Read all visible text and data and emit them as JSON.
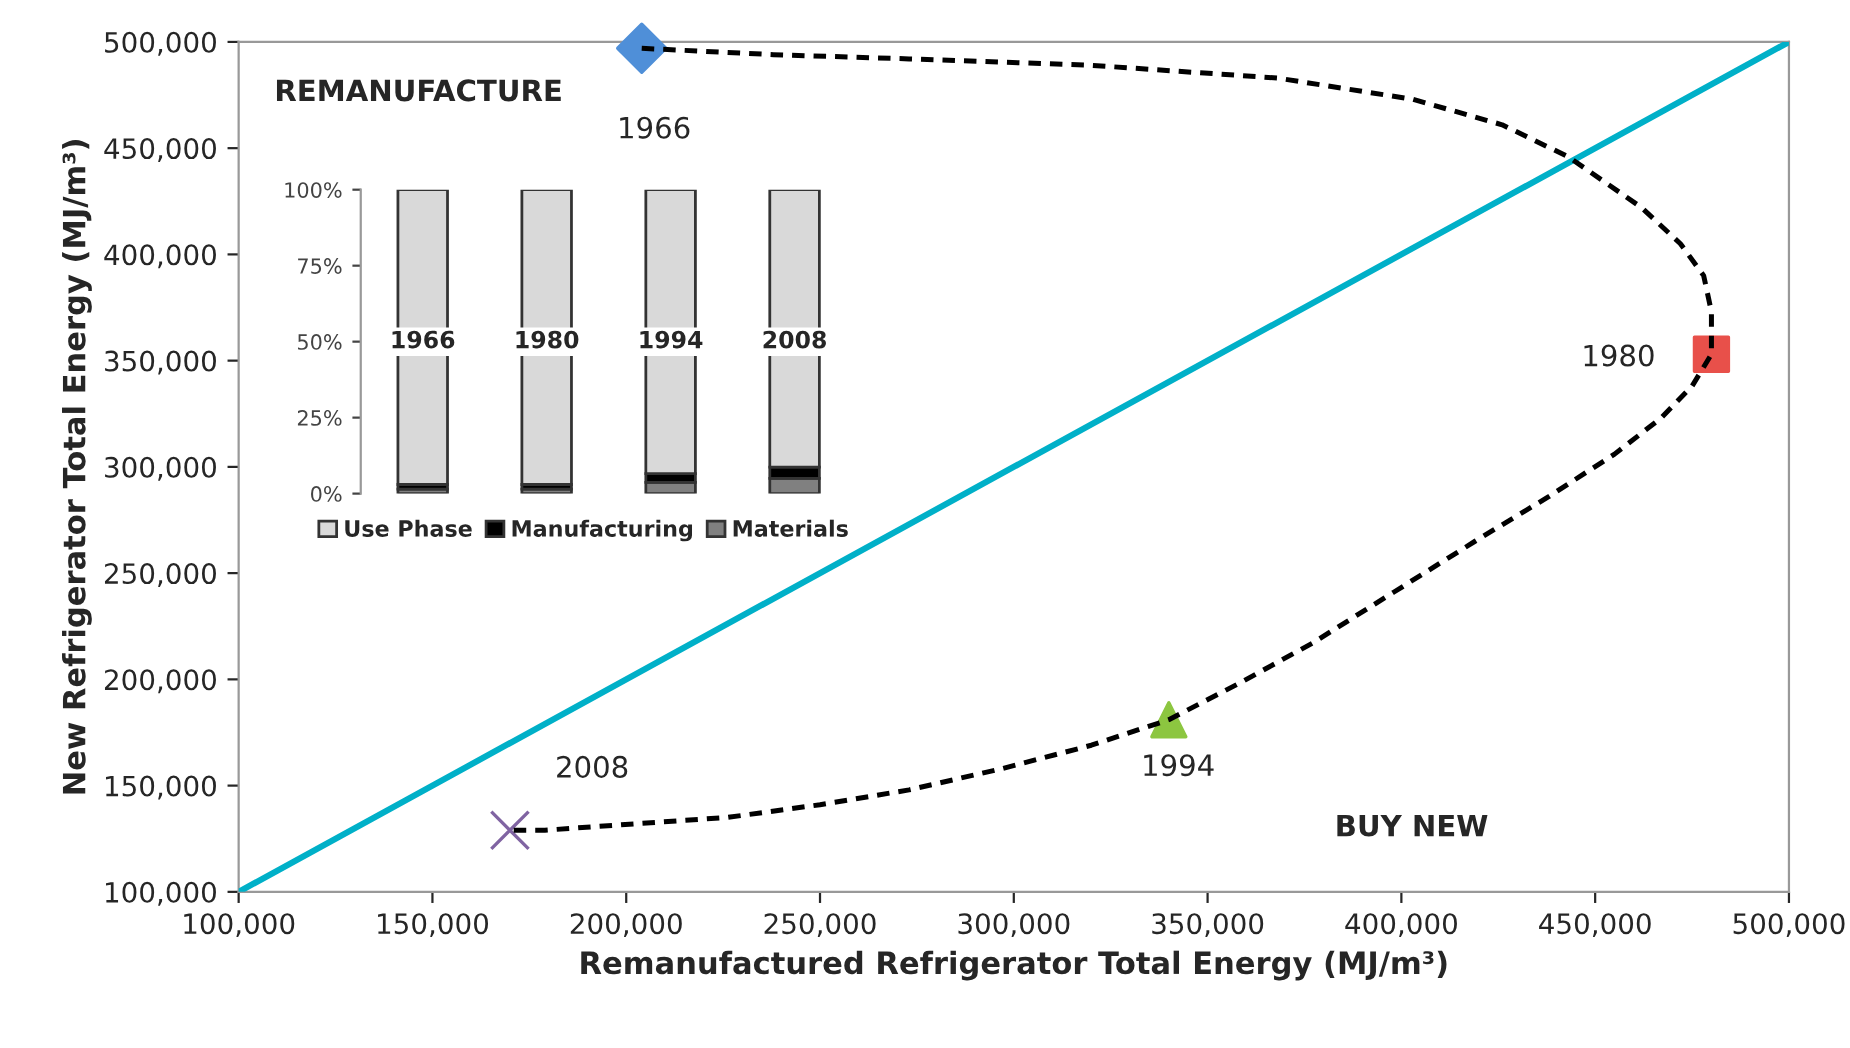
{
  "chart_data": [
    {
      "type": "scatter",
      "xlabel": "Remanufactured Refrigerator Total Energy (MJ/m³)",
      "ylabel": "New Refrigerator Total Energy (MJ/m³)",
      "xlim": [
        100000,
        500000
      ],
      "ylim": [
        100000,
        500000
      ],
      "xticks": [
        {
          "value": 100000,
          "label": "100,000"
        },
        {
          "value": 150000,
          "label": "150,000"
        },
        {
          "value": 200000,
          "label": "200,000"
        },
        {
          "value": 250000,
          "label": "250,000"
        },
        {
          "value": 300000,
          "label": "300,000"
        },
        {
          "value": 350000,
          "label": "350,000"
        },
        {
          "value": 400000,
          "label": "400,000"
        },
        {
          "value": 450000,
          "label": "450,000"
        },
        {
          "value": 500000,
          "label": "500,000"
        }
      ],
      "yticks": [
        {
          "value": 100000,
          "label": "100,000"
        },
        {
          "value": 150000,
          "label": "150,000"
        },
        {
          "value": 200000,
          "label": "200,000"
        },
        {
          "value": 250000,
          "label": "250,000"
        },
        {
          "value": 300000,
          "label": "300,000"
        },
        {
          "value": 350000,
          "label": "350,000"
        },
        {
          "value": 400000,
          "label": "400,000"
        },
        {
          "value": 450000,
          "label": "450,000"
        },
        {
          "value": 500000,
          "label": "500,000"
        }
      ],
      "grid": false,
      "series": [
        {
          "type": "line",
          "color": "#00b0c8",
          "line_style": "solid",
          "marker": "none",
          "x": [
            100000,
            500000
          ],
          "values": [
            100000,
            500000
          ]
        },
        {
          "type": "line",
          "color": "#000000",
          "line_style": "dashed",
          "marker": "none",
          "x": [
            204000,
            238000,
            273000,
            320000,
            368000,
            403000,
            426000,
            443000,
            462000,
            472000,
            478000,
            480000,
            480000,
            475000,
            467000,
            455000,
            438000,
            419000,
            398000,
            377000,
            358000,
            340000,
            320000,
            297000,
            273000,
            250000,
            226000,
            202000,
            179000,
            170000
          ],
          "values": [
            497000,
            494000,
            492000,
            489000,
            483000,
            473000,
            461000,
            446000,
            422000,
            405000,
            390000,
            373000,
            353000,
            338000,
            323000,
            306000,
            286000,
            265000,
            241000,
            217000,
            198000,
            181000,
            169000,
            158000,
            148000,
            141000,
            135000,
            132000,
            129000,
            129000
          ]
        },
        {
          "type": "scatter",
          "color": "#4f8fd8",
          "marker": "diamond",
          "x": [
            204000
          ],
          "values": [
            497000
          ]
        },
        {
          "type": "scatter",
          "color": "#e8504a",
          "marker": "square",
          "x": [
            480000
          ],
          "values": [
            353000
          ]
        },
        {
          "type": "scatter",
          "color": "#8cc640",
          "marker": "triangle",
          "x": [
            340000
          ],
          "values": [
            181000
          ]
        },
        {
          "type": "scatter",
          "color": "#8064a2",
          "marker": "cross",
          "x": [
            170000
          ],
          "values": [
            129000
          ]
        }
      ],
      "annotations": [
        "1966",
        "1980",
        "1994",
        "2008",
        "REMANUFACTURE",
        "BUY NEW"
      ]
    },
    {
      "type": "bar",
      "stacked": true,
      "categories": [
        "1966",
        "1980",
        "1994",
        "2008"
      ],
      "ylim": [
        0,
        100
      ],
      "yticks": [
        {
          "value": 0,
          "label": "0%"
        },
        {
          "value": 25,
          "label": "25%"
        },
        {
          "value": 50,
          "label": "50%"
        },
        {
          "value": 75,
          "label": "75%"
        },
        {
          "value": 100,
          "label": "100%"
        }
      ],
      "legend": "bottom",
      "grid": false,
      "series": [
        {
          "name": "Materials",
          "color": "#808080",
          "values": [
            1.5,
            1.5,
            3.7,
            5
          ]
        },
        {
          "name": "Manufacturing",
          "color": "#000000",
          "values": [
            1.5,
            1.5,
            2.9,
            3.7
          ]
        },
        {
          "name": "Use Phase",
          "color": "#d9d9d9",
          "values": [
            97,
            97,
            93.4,
            91.3
          ]
        }
      ]
    }
  ]
}
